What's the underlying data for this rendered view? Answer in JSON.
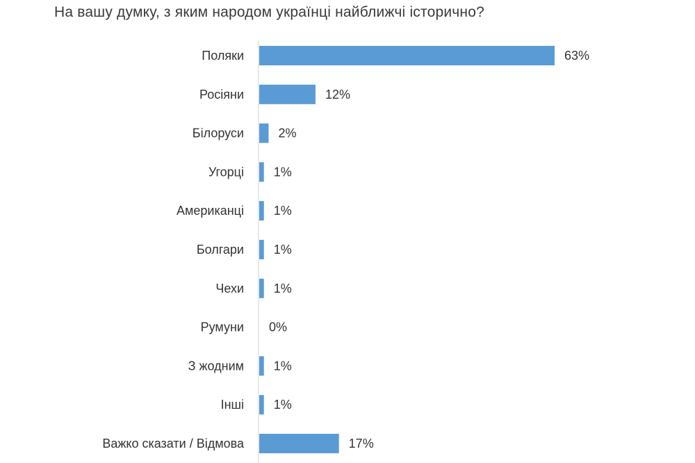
{
  "chart_data": {
    "type": "bar",
    "orientation": "horizontal",
    "title": "На вашу думку, з яким народом українці найближчі історично?",
    "categories": [
      "Поляки",
      "Росіяни",
      "Білоруси",
      "Угорці",
      "Американці",
      "Болгари",
      "Чехи",
      "Румуни",
      "З жодним",
      "Інші",
      "Важко сказати / Відмова"
    ],
    "values": [
      63,
      12,
      2,
      1,
      1,
      1,
      1,
      0,
      1,
      1,
      17
    ],
    "value_labels": [
      "63%",
      "12%",
      "2%",
      "1%",
      "1%",
      "1%",
      "1%",
      "0%",
      "1%",
      "1%",
      "17%"
    ],
    "unit": "%",
    "xlim": [
      0,
      63
    ],
    "bar_color": "#5b9bd5",
    "grid": false,
    "legend": "none"
  }
}
